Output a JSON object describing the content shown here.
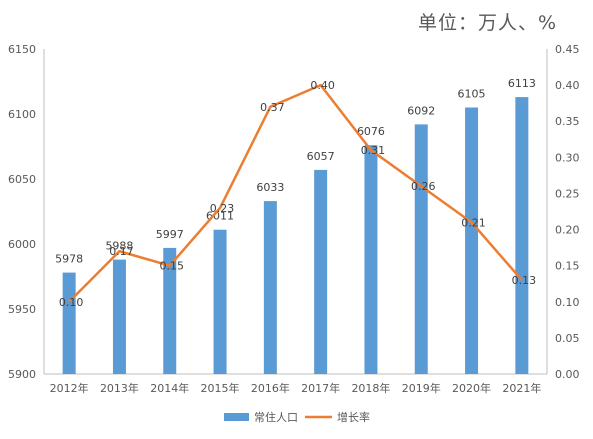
{
  "unit_label": "单位：万人、%",
  "colors": {
    "bar": "#5B9BD5",
    "line": "#ED7D31",
    "axis": "#595959",
    "grid": "#D9D9D9"
  },
  "chart_data": {
    "type": "bar",
    "categories": [
      "2012年",
      "2013年",
      "2014年",
      "2015年",
      "2016年",
      "2017年",
      "2018年",
      "2019年",
      "2020年",
      "2021年"
    ],
    "series": [
      {
        "name": "常住人口",
        "type": "bar",
        "axis": "left",
        "values": [
          5978,
          5988,
          5997,
          6011,
          6033,
          6057,
          6076,
          6092,
          6105,
          6113
        ]
      },
      {
        "name": "增长率",
        "type": "line",
        "axis": "right",
        "values": [
          0.1,
          0.17,
          0.15,
          0.23,
          0.37,
          0.4,
          0.31,
          0.26,
          0.21,
          0.13
        ],
        "labels": [
          "0.10",
          "0.17",
          "0.15",
          "0.23",
          "0.37",
          "0.40",
          "0.31",
          "0.26",
          "0.21",
          "0.13"
        ]
      }
    ],
    "y_left": {
      "min": 5900,
      "max": 6150,
      "ticks": [
        "5900",
        "5950",
        "6000",
        "6050",
        "6100",
        "6150"
      ]
    },
    "y_right": {
      "min": 0,
      "max": 0.45,
      "ticks": [
        "0.00",
        "0.05",
        "0.10",
        "0.15",
        "0.20",
        "0.25",
        "0.30",
        "0.35",
        "0.40",
        "0.45"
      ]
    },
    "grid": false,
    "legend_position": "bottom"
  }
}
